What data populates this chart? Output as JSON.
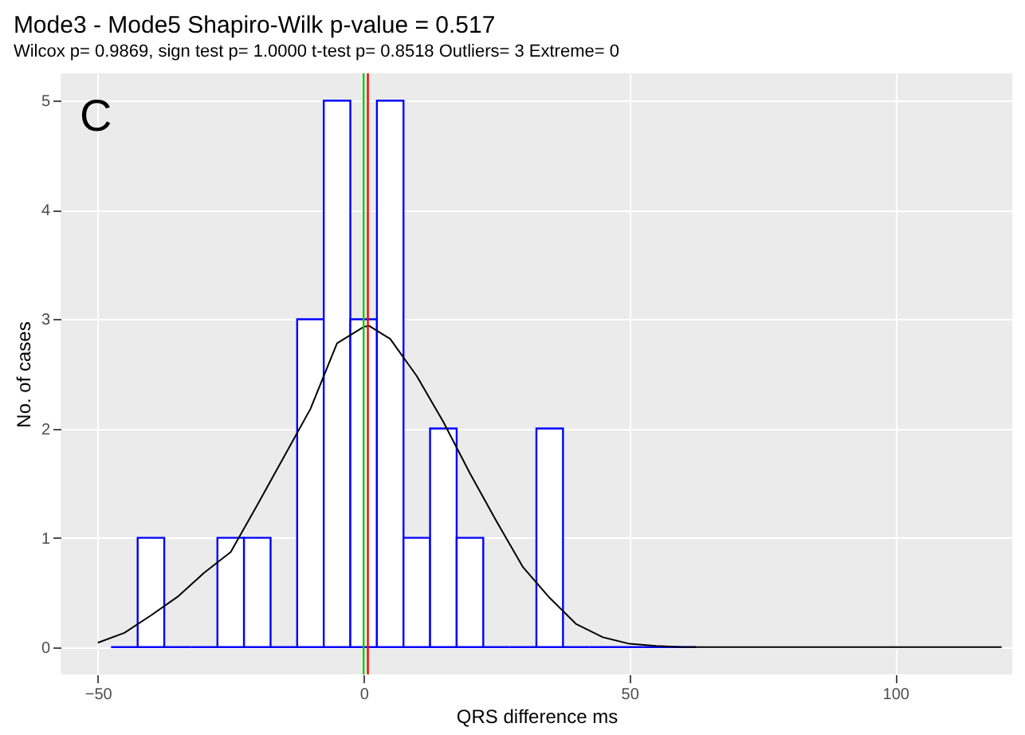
{
  "chart_data": {
    "type": "histogram",
    "title": "Mode3 - Mode5  Shapiro-Wilk p-value =     0.517",
    "subtitle": "Wilcox p=  0.9869, sign test p=  1.0000  t-test p=  0.8518   Outliers= 3  Extreme= 0",
    "xlabel": "QRS difference ms",
    "ylabel": "No. of cases",
    "annotations": [
      "C"
    ],
    "series": [
      {
        "color": "#0000ff",
        "bins": [
          -47.5,
          -42.5,
          -37.5,
          -32.5,
          -27.5,
          -22.5,
          -17.5,
          -12.5,
          -7.5,
          -2.5,
          2.5,
          7.5,
          12.5,
          17.5,
          22.5,
          27.5,
          32.5,
          37.5,
          42.5,
          47.5,
          52.5,
          57.5,
          62.5
        ],
        "values": [
          0,
          1,
          0,
          0,
          1,
          1,
          0,
          3,
          5,
          3,
          5,
          1,
          2,
          1,
          0,
          0,
          2,
          0,
          0,
          0,
          0,
          0
        ]
      },
      {
        "type": "line",
        "color": "#000000",
        "x": [
          -50,
          -45,
          -40,
          -35,
          -30,
          -25,
          -20,
          -15,
          -10,
          -5,
          0,
          1,
          5,
          10,
          15,
          20,
          25,
          30,
          35,
          40,
          45,
          50,
          55,
          60,
          120
        ],
        "values": [
          0.04,
          0.13,
          0.29,
          0.46,
          0.68,
          0.87,
          1.3,
          1.74,
          2.18,
          2.78,
          2.93,
          2.94,
          2.82,
          2.48,
          2.06,
          1.59,
          1.15,
          0.73,
          0.45,
          0.21,
          0.09,
          0.03,
          0.01,
          0,
          0
        ]
      }
    ],
    "ref_lines": [
      {
        "axis": "x",
        "value": 0,
        "color": "#00cc00"
      },
      {
        "axis": "x",
        "value": 0.8,
        "color": "#ff0000"
      }
    ],
    "xlim": [
      -57,
      122
    ],
    "xticks": [
      -50,
      0,
      50,
      100
    ],
    "ylim": [
      -0.25,
      5.25
    ],
    "yticks": [
      0,
      1,
      2,
      3,
      4,
      5
    ],
    "grid": true
  }
}
